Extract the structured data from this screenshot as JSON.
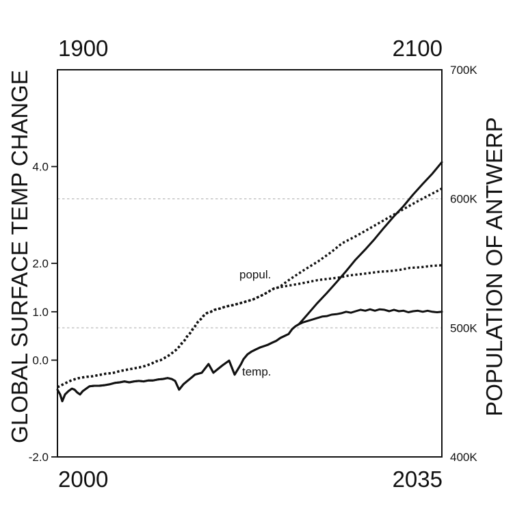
{
  "chart_data": {
    "type": "line",
    "title": "",
    "ylabel_left": "GLOBAL SURFACE TEMP CHANGE",
    "ylabel_right": "POPULATION OF ANTWERP",
    "colors": {
      "line": "#111111",
      "grid": "#b3b3b3",
      "text": "#111111",
      "background": "#ffffff"
    },
    "legend": "none",
    "grid": "two dashed horizontal lines at right-axis 500K and 600K",
    "series_labels": {
      "popul": "popul.",
      "temp": "temp."
    },
    "axes": {
      "x_top": {
        "min": 1900,
        "max": 2100,
        "min_label": "1900",
        "max_label": "2100"
      },
      "x_bottom": {
        "min": 2000,
        "max": 2035,
        "min_label": "2000",
        "max_label": "2035"
      },
      "y_left": {
        "min": -2,
        "max": 6,
        "ticks": [
          -2,
          0,
          1,
          2,
          4
        ],
        "tick_labels": [
          "-2.0",
          "0.0",
          "1.0",
          "2.0",
          "4.0"
        ]
      },
      "y_right": {
        "min": 400,
        "max": 700,
        "ticks": [
          400,
          500,
          600,
          700
        ],
        "tick_labels": [
          "400K",
          "500K",
          "600K",
          "700K"
        ],
        "gridlines": [
          500,
          600
        ]
      }
    },
    "series": [
      {
        "name": "temp-vs-bottom-axis",
        "label": "temp.",
        "style": "solid",
        "x_axis": "bottom",
        "y_axis": "left",
        "points": [
          [
            2000,
            -0.61
          ],
          [
            2000.25,
            -0.71
          ],
          [
            2000.44,
            -0.85
          ],
          [
            2000.69,
            -0.71
          ],
          [
            2001,
            -0.64
          ],
          [
            2001.31,
            -0.59
          ],
          [
            2001.56,
            -0.61
          ],
          [
            2001.81,
            -0.67
          ],
          [
            2002.06,
            -0.71
          ],
          [
            2002.3,
            -0.64
          ],
          [
            2002.62,
            -0.59
          ],
          [
            2002.93,
            -0.54
          ],
          [
            2003.36,
            -0.53
          ],
          [
            2003.8,
            -0.53
          ],
          [
            2004.23,
            -0.52
          ],
          [
            2004.73,
            -0.5
          ],
          [
            2005.23,
            -0.47
          ],
          [
            2005.67,
            -0.46
          ],
          [
            2006.1,
            -0.44
          ],
          [
            2006.54,
            -0.46
          ],
          [
            2006.98,
            -0.44
          ],
          [
            2007.41,
            -0.43
          ],
          [
            2007.85,
            -0.44
          ],
          [
            2008.28,
            -0.42
          ],
          [
            2008.72,
            -0.42
          ],
          [
            2009.15,
            -0.4
          ],
          [
            2009.59,
            -0.39
          ],
          [
            2010.03,
            -0.37
          ],
          [
            2010.4,
            -0.39
          ],
          [
            2010.71,
            -0.43
          ],
          [
            2011.08,
            -0.61
          ],
          [
            2011.46,
            -0.5
          ],
          [
            2011.83,
            -0.43
          ],
          [
            2012.21,
            -0.36
          ],
          [
            2012.52,
            -0.3
          ],
          [
            2013.14,
            -0.26
          ],
          [
            2013.76,
            -0.08
          ],
          [
            2014.2,
            -0.26
          ],
          [
            2014.57,
            -0.19
          ],
          [
            2015.01,
            -0.11
          ],
          [
            2015.63,
            -0.01
          ],
          [
            2016.13,
            -0.3
          ],
          [
            2016.69,
            -0.09
          ],
          [
            2016.94,
            0.02
          ],
          [
            2017.31,
            0.12
          ],
          [
            2017.69,
            0.18
          ],
          [
            2018.06,
            0.22
          ],
          [
            2018.43,
            0.26
          ],
          [
            2018.81,
            0.29
          ],
          [
            2019.18,
            0.32
          ],
          [
            2019.55,
            0.36
          ],
          [
            2019.93,
            0.4
          ],
          [
            2020.3,
            0.46
          ],
          [
            2020.68,
            0.5
          ],
          [
            2021.05,
            0.54
          ],
          [
            2021.36,
            0.64
          ],
          [
            2021.67,
            0.7
          ],
          [
            2021.98,
            0.74
          ],
          [
            2022.36,
            0.78
          ],
          [
            2022.79,
            0.81
          ],
          [
            2023.23,
            0.84
          ],
          [
            2023.66,
            0.87
          ],
          [
            2024.1,
            0.9
          ],
          [
            2024.54,
            0.91
          ],
          [
            2024.97,
            0.94
          ],
          [
            2025.41,
            0.95
          ],
          [
            2025.85,
            0.97
          ],
          [
            2026.28,
            1
          ],
          [
            2026.72,
            0.98
          ],
          [
            2027.15,
            1.01
          ],
          [
            2027.59,
            1.04
          ],
          [
            2028.03,
            1.02
          ],
          [
            2028.46,
            1.05
          ],
          [
            2028.9,
            1.02
          ],
          [
            2029.34,
            1.05
          ],
          [
            2029.77,
            1.04
          ],
          [
            2030.21,
            1.01
          ],
          [
            2030.64,
            1.04
          ],
          [
            2031.08,
            1.01
          ],
          [
            2031.52,
            1.02
          ],
          [
            2031.95,
            0.99
          ],
          [
            2032.39,
            1.01
          ],
          [
            2032.82,
            1.02
          ],
          [
            2033.26,
            1
          ],
          [
            2033.7,
            1.02
          ],
          [
            2034.13,
            1
          ],
          [
            2034.57,
            0.99
          ],
          [
            2035,
            1
          ]
        ]
      },
      {
        "name": "temp-vs-top-axis",
        "label": "temp.",
        "style": "solid",
        "x_axis": "top",
        "y_axis": "left",
        "points": [
          [
            1900,
            -0.61
          ],
          [
            1901.4,
            -0.71
          ],
          [
            1902.5,
            -0.85
          ],
          [
            1903.9,
            -0.71
          ],
          [
            1905.7,
            -0.64
          ],
          [
            1907.5,
            -0.59
          ],
          [
            1908.9,
            -0.61
          ],
          [
            1910.3,
            -0.67
          ],
          [
            1911.7,
            -0.71
          ],
          [
            1913.2,
            -0.64
          ],
          [
            1914.9,
            -0.59
          ],
          [
            1916.7,
            -0.54
          ],
          [
            1919.2,
            -0.53
          ],
          [
            1921.7,
            -0.53
          ],
          [
            1924.2,
            -0.52
          ],
          [
            1927,
            -0.5
          ],
          [
            1929.9,
            -0.47
          ],
          [
            1932.4,
            -0.46
          ],
          [
            1934.9,
            -0.44
          ],
          [
            1937.4,
            -0.46
          ],
          [
            1939.9,
            -0.44
          ],
          [
            1942.3,
            -0.43
          ],
          [
            1944.8,
            -0.44
          ],
          [
            1947.3,
            -0.42
          ],
          [
            1949.8,
            -0.42
          ],
          [
            1952.3,
            -0.4
          ],
          [
            1954.8,
            -0.39
          ],
          [
            1957.3,
            -0.37
          ],
          [
            1959.4,
            -0.39
          ],
          [
            1961.2,
            -0.43
          ],
          [
            1963.3,
            -0.61
          ],
          [
            1965.5,
            -0.5
          ],
          [
            1967.6,
            -0.43
          ],
          [
            1969.7,
            -0.36
          ],
          [
            1971.5,
            -0.3
          ],
          [
            1975.1,
            -0.26
          ],
          [
            1978.6,
            -0.08
          ],
          [
            1981.1,
            -0.26
          ],
          [
            1983.3,
            -0.19
          ],
          [
            1985.8,
            -0.11
          ],
          [
            1989.3,
            -0.01
          ],
          [
            1992.2,
            -0.3
          ],
          [
            1995.4,
            -0.09
          ],
          [
            1996.8,
            0.02
          ],
          [
            1998.9,
            0.12
          ],
          [
            2001.1,
            0.18
          ],
          [
            2003.2,
            0.22
          ],
          [
            2005.3,
            0.26
          ],
          [
            2007.5,
            0.29
          ],
          [
            2009.6,
            0.32
          ],
          [
            2011.7,
            0.36
          ],
          [
            2013.9,
            0.4
          ],
          [
            2016,
            0.46
          ],
          [
            2018.2,
            0.5
          ],
          [
            2020.3,
            0.54
          ],
          [
            2022.1,
            0.64
          ],
          [
            2023.8,
            0.7
          ],
          [
            2025.6,
            0.74
          ],
          [
            2030,
            0.94
          ],
          [
            2035,
            1.17
          ],
          [
            2040,
            1.38
          ],
          [
            2045,
            1.6
          ],
          [
            2050,
            1.83
          ],
          [
            2055,
            2.07
          ],
          [
            2060,
            2.28
          ],
          [
            2065,
            2.5
          ],
          [
            2070,
            2.74
          ],
          [
            2075,
            2.97
          ],
          [
            2080,
            3.18
          ],
          [
            2085,
            3.42
          ],
          [
            2090,
            3.64
          ],
          [
            2095,
            3.85
          ],
          [
            2100,
            4.09
          ]
        ]
      },
      {
        "name": "popul-vs-bottom-axis",
        "label": "popul.",
        "style": "dotted",
        "x_axis": "bottom",
        "y_axis": "right",
        "points": [
          [
            2000,
            454
          ],
          [
            2000.7,
            457
          ],
          [
            2001.3,
            459.5
          ],
          [
            2001.9,
            461
          ],
          [
            2002.6,
            462
          ],
          [
            2003.2,
            462.5
          ],
          [
            2003.8,
            463.5
          ],
          [
            2004.4,
            464.5
          ],
          [
            2005,
            465
          ],
          [
            2005.7,
            466.5
          ],
          [
            2006.3,
            467.5
          ],
          [
            2006.9,
            468.5
          ],
          [
            2007.5,
            469.5
          ],
          [
            2008,
            470.5
          ],
          [
            2008.5,
            472
          ],
          [
            2009,
            474
          ],
          [
            2009.4,
            475
          ],
          [
            2009.8,
            477
          ],
          [
            2010.2,
            479
          ],
          [
            2010.6,
            481.5
          ],
          [
            2010.8,
            483
          ],
          [
            2011.1,
            485.5
          ],
          [
            2011.3,
            488
          ],
          [
            2011.6,
            490.5
          ],
          [
            2011.8,
            493.5
          ],
          [
            2012.1,
            496
          ],
          [
            2012.3,
            499
          ],
          [
            2012.6,
            502
          ],
          [
            2012.8,
            505
          ],
          [
            2013.1,
            507
          ],
          [
            2013.3,
            509.5
          ],
          [
            2013.6,
            511.5
          ],
          [
            2014,
            512.5
          ],
          [
            2014.3,
            514
          ],
          [
            2014.8,
            515
          ],
          [
            2015.3,
            516.5
          ],
          [
            2015.9,
            517.5
          ],
          [
            2016.6,
            519
          ],
          [
            2017.2,
            520.5
          ],
          [
            2017.8,
            522
          ],
          [
            2018.3,
            524
          ],
          [
            2018.8,
            526
          ],
          [
            2019.3,
            528.5
          ],
          [
            2019.7,
            530.5
          ],
          [
            2020.2,
            531.5
          ],
          [
            2020.9,
            532.5
          ],
          [
            2021.9,
            534
          ],
          [
            2022.8,
            535.5
          ],
          [
            2023.7,
            537
          ],
          [
            2024.7,
            538
          ],
          [
            2025.6,
            539
          ],
          [
            2026.5,
            540.5
          ],
          [
            2027.5,
            541.5
          ],
          [
            2028.4,
            542.5
          ],
          [
            2029.3,
            543.5
          ],
          [
            2030.3,
            544
          ],
          [
            2031.2,
            545
          ],
          [
            2032.1,
            546.5
          ],
          [
            2033.1,
            547
          ],
          [
            2034,
            548
          ],
          [
            2035,
            548.5
          ]
        ]
      },
      {
        "name": "popul-vs-top-axis",
        "label": "popul.",
        "style": "dotted",
        "x_axis": "top",
        "y_axis": "right",
        "points": [
          [
            1900,
            454
          ],
          [
            1903.9,
            457
          ],
          [
            1907.5,
            459.5
          ],
          [
            1911,
            461
          ],
          [
            1914.6,
            462
          ],
          [
            1918.1,
            462.5
          ],
          [
            1921.7,
            463.5
          ],
          [
            1925.3,
            464.5
          ],
          [
            1928.8,
            465
          ],
          [
            1932.4,
            466.5
          ],
          [
            1935.9,
            467.5
          ],
          [
            1939.5,
            468.5
          ],
          [
            1943.1,
            469.5
          ],
          [
            1945.6,
            470.5
          ],
          [
            1948.4,
            472
          ],
          [
            1951.2,
            474
          ],
          [
            1953.7,
            475
          ],
          [
            1956.2,
            477
          ],
          [
            1958.4,
            479
          ],
          [
            1960.5,
            481.5
          ],
          [
            1961.9,
            483
          ],
          [
            1963.3,
            485.5
          ],
          [
            1964.8,
            488
          ],
          [
            1966.2,
            490.5
          ],
          [
            1967.6,
            493.5
          ],
          [
            1969,
            496
          ],
          [
            1970.5,
            499
          ],
          [
            1971.9,
            502
          ],
          [
            1973.3,
            505
          ],
          [
            1974.7,
            507
          ],
          [
            1976.2,
            509.5
          ],
          [
            1977.9,
            511.5
          ],
          [
            1979.7,
            512.5
          ],
          [
            1981.8,
            514
          ],
          [
            1984.7,
            515
          ],
          [
            1987.5,
            516.5
          ],
          [
            1991.1,
            517.5
          ],
          [
            1994.7,
            519
          ],
          [
            1998.2,
            520.5
          ],
          [
            2001.8,
            522
          ],
          [
            2004.6,
            524
          ],
          [
            2007.5,
            526
          ],
          [
            2010.3,
            528.5
          ],
          [
            2012.8,
            530.5
          ],
          [
            2015.3,
            531.5
          ],
          [
            2021.3,
            538
          ],
          [
            2028.5,
            545
          ],
          [
            2035.6,
            551.5
          ],
          [
            2042.7,
            559
          ],
          [
            2048,
            565.5
          ],
          [
            2055.2,
            571
          ],
          [
            2062.3,
            577
          ],
          [
            2069.4,
            583
          ],
          [
            2076.5,
            589
          ],
          [
            2083.6,
            595
          ],
          [
            2089.7,
            600
          ],
          [
            2095,
            604
          ],
          [
            2100,
            608
          ]
        ]
      }
    ]
  }
}
